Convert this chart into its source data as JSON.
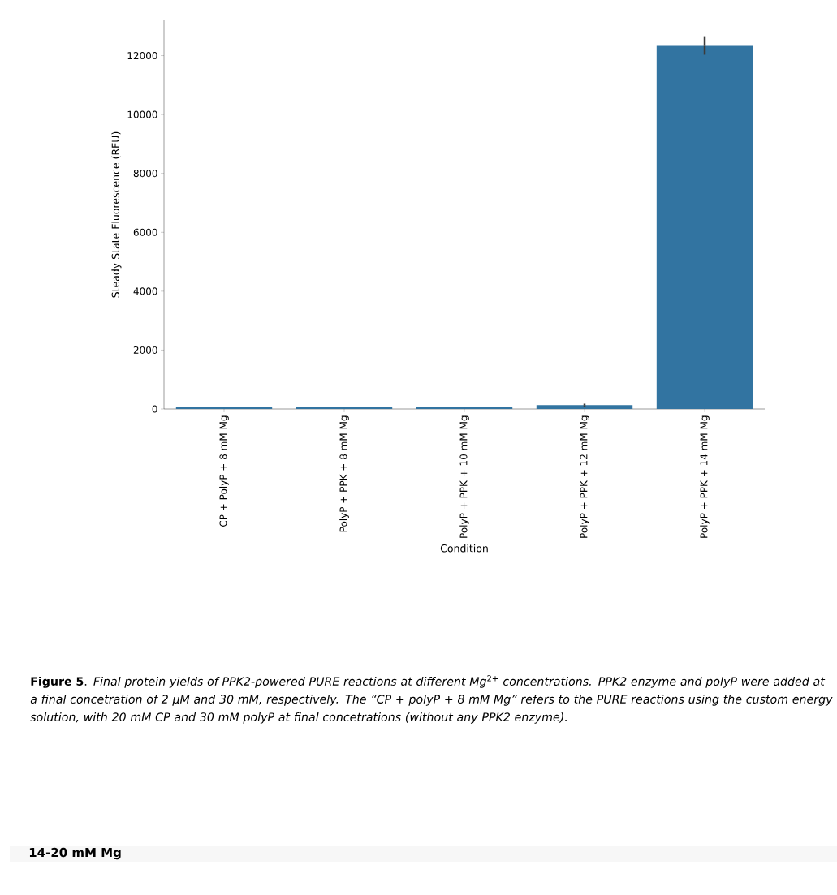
{
  "chart_data": {
    "type": "bar",
    "categories": [
      "CP + PolyP + 8 mM Mg",
      "PolyP + PPK + 8 mM Mg",
      "PolyP + PPK + 10 mM Mg",
      "PolyP + PPK + 12 mM Mg",
      "PolyP + PPK + 14 mM Mg"
    ],
    "values": [
      80,
      80,
      80,
      130,
      12330
    ],
    "errors": [
      null,
      null,
      null,
      [
        80,
        180
      ],
      [
        12030,
        12660
      ]
    ],
    "color": "#3274a1",
    "xlabel": "Condition",
    "ylabel": "Steady State Fluorescence (RFU)",
    "ylim": [
      0,
      13200
    ],
    "yticks": [
      0,
      2000,
      4000,
      6000,
      8000,
      10000,
      12000
    ],
    "annotations": [
      "**Figure 5**.   *Final protein yields of PPK2-powered PURE reactions at different Mg*$^{2+}$ *concentrations. PPK2 enzyme and polyP were added at a final concetration of 2 μM and 30 mM, respectively. The “CP + polyP + 8 mM Mg” refers to the PURE reactions using the custom energy solution, with 20 mM CP and 30 mM polyP at final concetrations (without any PPK2 enzyme).*",
      "14-20 mM Mg"
    ]
  }
}
